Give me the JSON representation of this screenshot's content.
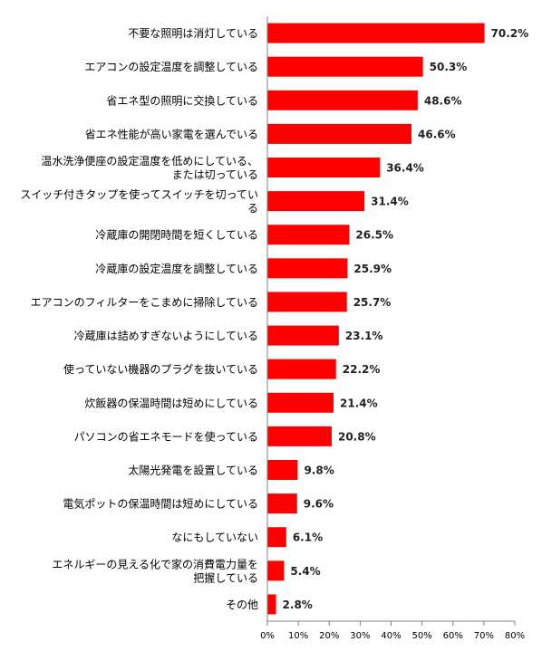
{
  "chart_data": {
    "type": "bar",
    "orientation": "horizontal",
    "categories": [
      [
        "不要な照明は消灯している"
      ],
      [
        "エアコンの設定温度を調整している"
      ],
      [
        "省エネ型の照明に交換している"
      ],
      [
        "省エネ性能が高い家電を選んでいる"
      ],
      [
        "温水洗浄便座の設定温度を低めにしている、",
        "または切っている"
      ],
      [
        "スイッチ付きタップを使ってスイッチを切ってい",
        "る"
      ],
      [
        "冷蔵庫の開閉時間を短くしている"
      ],
      [
        "冷蔵庫の設定温度を調整している"
      ],
      [
        "エアコンのフィルターをこまめに掃除している"
      ],
      [
        "冷蔵庫は詰めすぎないようにしている"
      ],
      [
        "使っていない機器のプラグを抜いている"
      ],
      [
        "炊飯器の保温時間は短めにしている"
      ],
      [
        "パソコンの省エネモードを使っている"
      ],
      [
        "太陽光発電を設置している"
      ],
      [
        "電気ポットの保温時間は短めにしている"
      ],
      [
        "なにもしていない"
      ],
      [
        "エネルギーの見える化で家の消費電力量を",
        "把握している"
      ],
      [
        "その他"
      ]
    ],
    "values": [
      70.2,
      50.3,
      48.6,
      46.6,
      36.4,
      31.4,
      26.5,
      25.9,
      25.7,
      23.1,
      22.2,
      21.4,
      20.8,
      9.8,
      9.6,
      6.1,
      5.4,
      2.8
    ],
    "value_labels": [
      "70.2%",
      "50.3%",
      "48.6%",
      "46.6%",
      "36.4%",
      "31.4%",
      "26.5%",
      "25.9%",
      "25.7%",
      "23.1%",
      "22.2%",
      "21.4%",
      "20.8%",
      "9.8%",
      "9.6%",
      "6.1%",
      "5.4%",
      "2.8%"
    ],
    "xlim": [
      0,
      80
    ],
    "x_ticks": [
      "0%",
      "10%",
      "20%",
      "30%",
      "40%",
      "50%",
      "60%",
      "70%",
      "80%"
    ],
    "grid": false,
    "legend": "none",
    "bar_color": "#ff0000",
    "axis_color": "#808080"
  }
}
